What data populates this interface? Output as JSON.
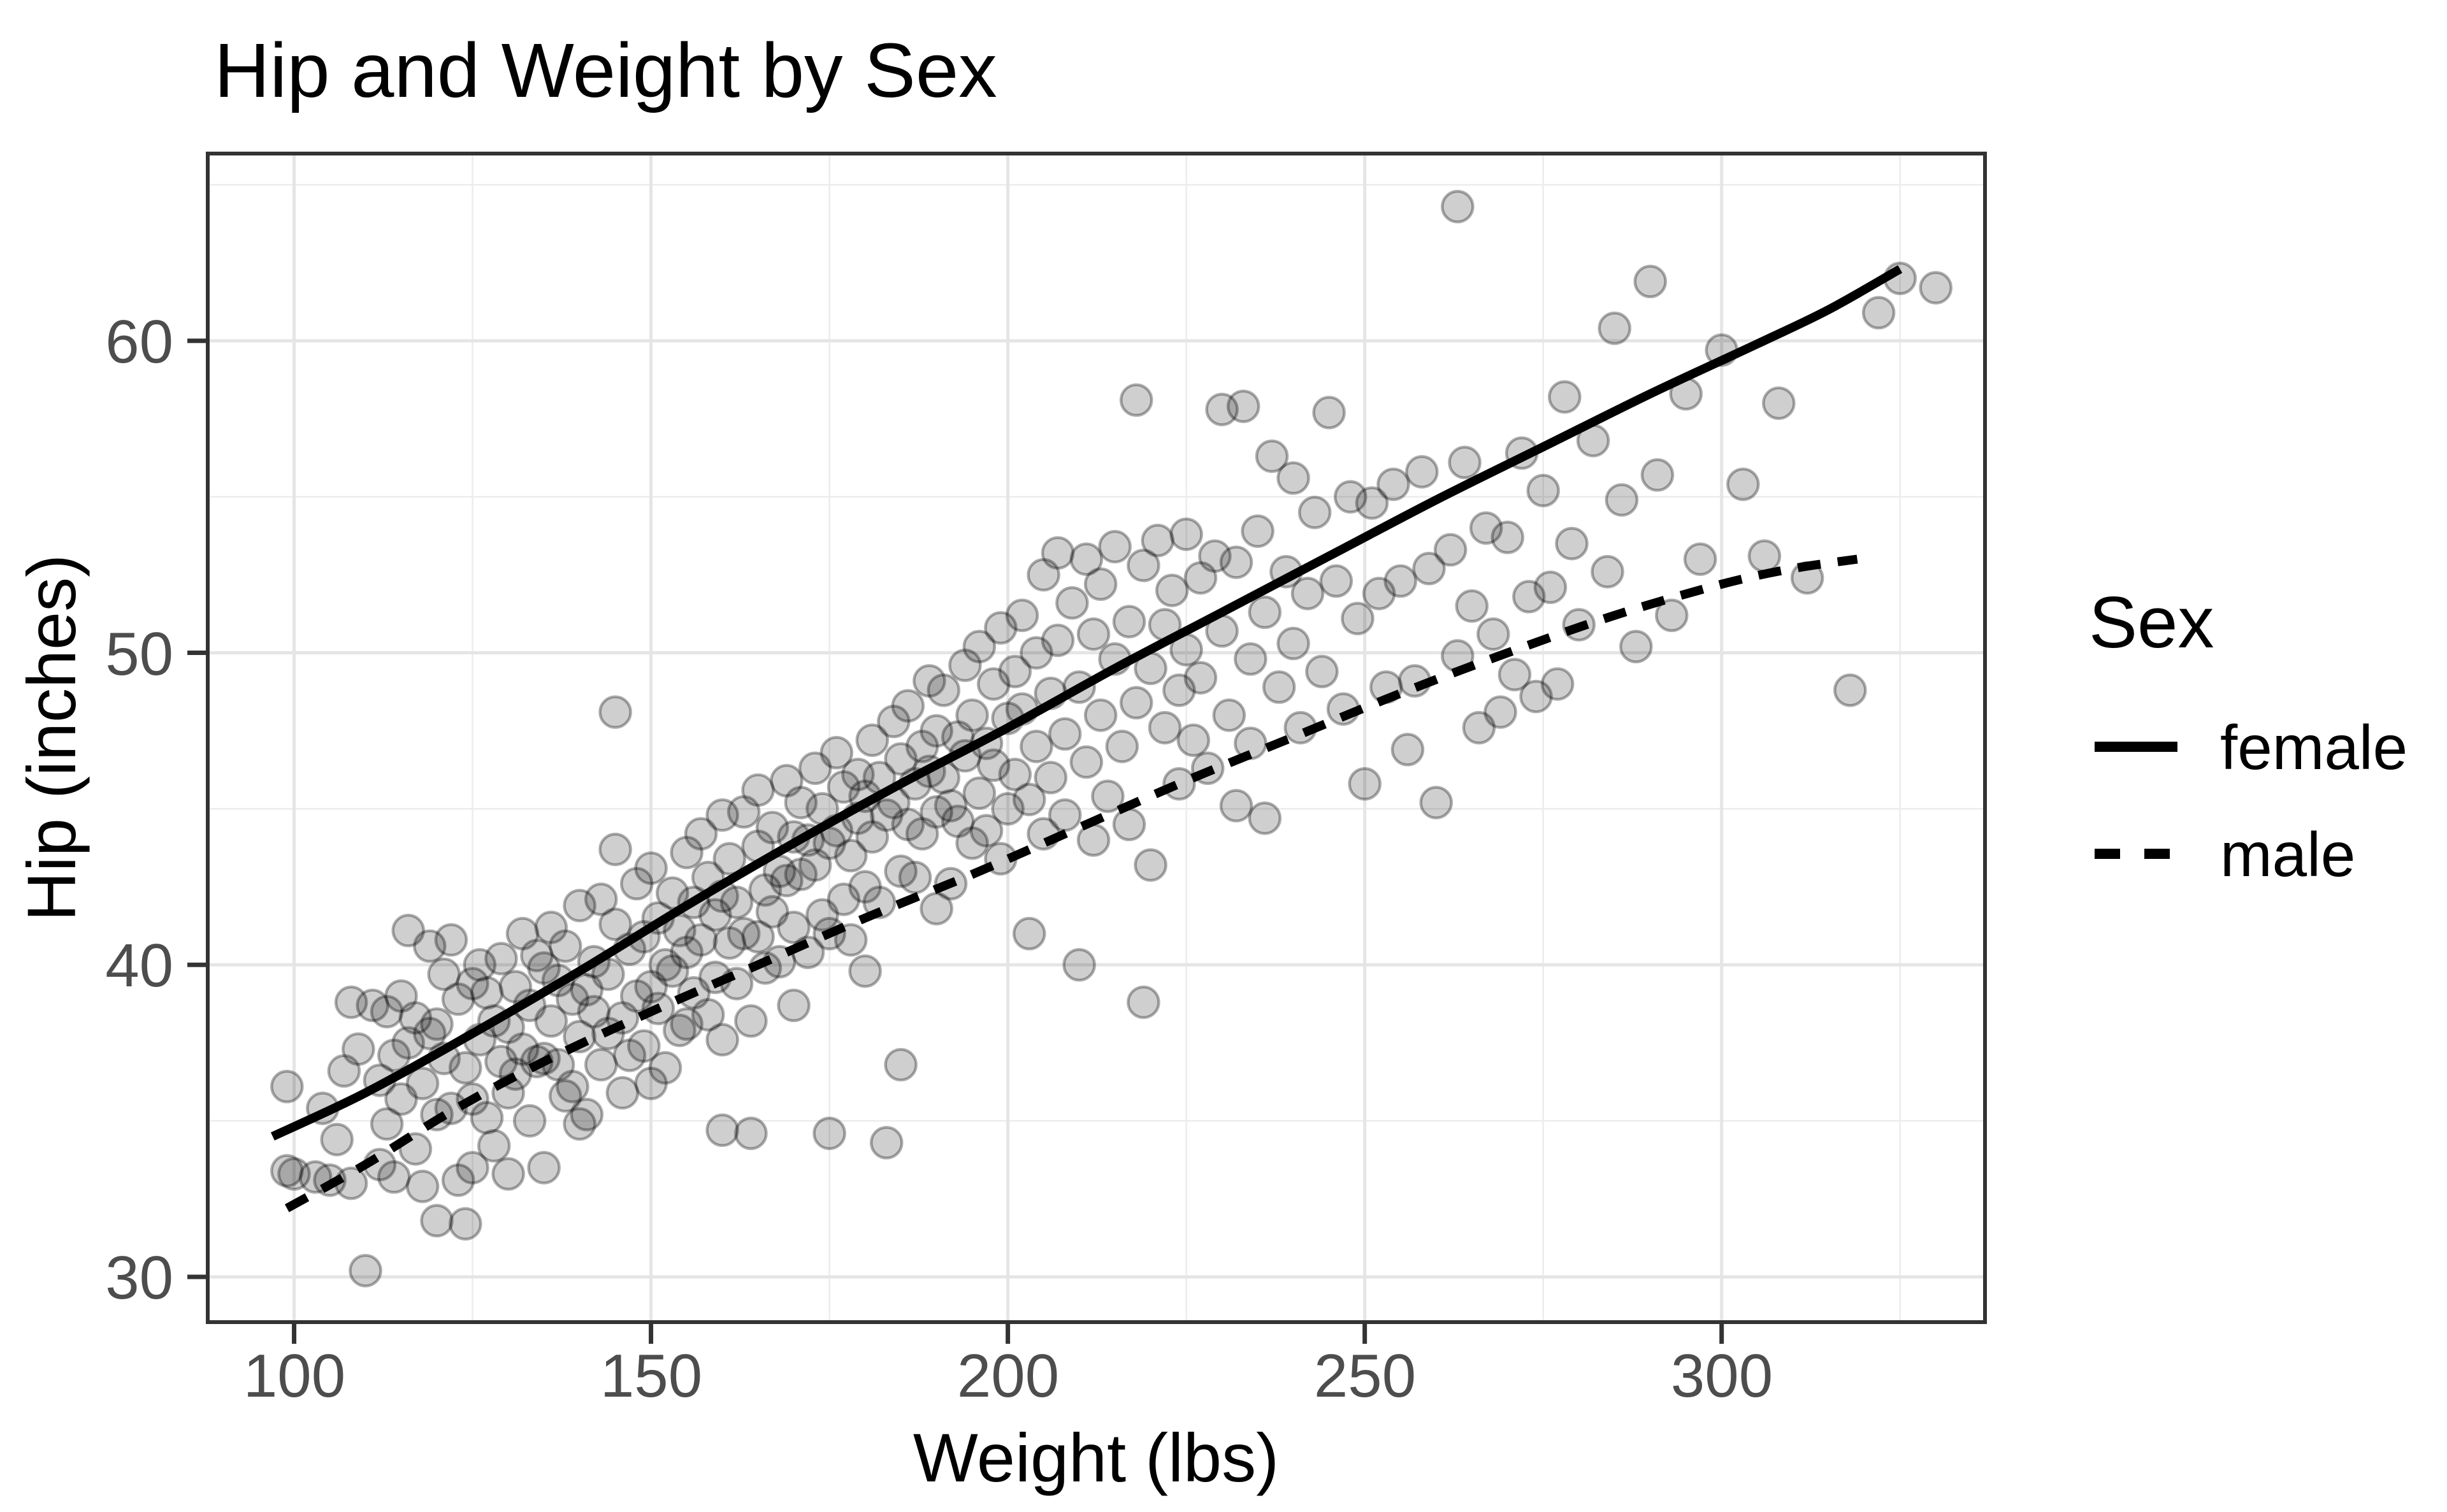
{
  "page": {
    "background": "#ffffff"
  },
  "chart_data": {
    "type": "scatter",
    "title": "Hip and Weight by Sex",
    "xlabel": "Weight (lbs)",
    "ylabel": "Hip (inches)",
    "xlim": [
      87.9,
      336.9
    ],
    "ylim": [
      28.55,
      66.0
    ],
    "x_ticks": [
      100,
      150,
      200,
      250,
      300
    ],
    "y_ticks": [
      30,
      40,
      50,
      60
    ],
    "x_minor_gridlines": [
      125,
      175,
      225,
      275,
      325
    ],
    "y_minor_gridlines": [
      35,
      45,
      55,
      65
    ],
    "grid": "on",
    "legend": {
      "title": "Sex",
      "position": "right",
      "entries": [
        {
          "label": "female",
          "linestyle": "solid"
        },
        {
          "label": "male",
          "linestyle": "dashed"
        }
      ]
    },
    "series": [
      {
        "name": "female",
        "linestyle": "solid",
        "values": [
          [
            97,
            34.5
          ],
          [
            110,
            35.9
          ],
          [
            125,
            37.8
          ],
          [
            140,
            39.8
          ],
          [
            155,
            41.9
          ],
          [
            170,
            43.9
          ],
          [
            185,
            45.8
          ],
          [
            200,
            47.6
          ],
          [
            215,
            49.5
          ],
          [
            230,
            51.3
          ],
          [
            245,
            53.1
          ],
          [
            260,
            54.9
          ],
          [
            275,
            56.6
          ],
          [
            290,
            58.3
          ],
          [
            305,
            59.9
          ],
          [
            315,
            61.0
          ],
          [
            325,
            62.3
          ]
        ]
      },
      {
        "name": "male",
        "linestyle": "dashed",
        "values": [
          [
            99,
            32.2
          ],
          [
            110,
            33.6
          ],
          [
            122,
            35.3
          ],
          [
            135,
            36.9
          ],
          [
            150,
            38.5
          ],
          [
            165,
            40.0
          ],
          [
            180,
            41.5
          ],
          [
            195,
            42.9
          ],
          [
            210,
            44.4
          ],
          [
            225,
            45.9
          ],
          [
            240,
            47.3
          ],
          [
            255,
            48.7
          ],
          [
            270,
            50.0
          ],
          [
            285,
            51.2
          ],
          [
            300,
            52.2
          ],
          [
            310,
            52.7
          ],
          [
            319,
            53.0
          ]
        ]
      }
    ],
    "points": [
      [
        99,
        36.1
      ],
      [
        99,
        33.4
      ],
      [
        100,
        33.3
      ],
      [
        103,
        33.2
      ],
      [
        104,
        35.4
      ],
      [
        105,
        33.1
      ],
      [
        106,
        34.4
      ],
      [
        107,
        36.6
      ],
      [
        108,
        33.0
      ],
      [
        108,
        38.8
      ],
      [
        109,
        37.3
      ],
      [
        110,
        30.2
      ],
      [
        111,
        38.7
      ],
      [
        112,
        36.3
      ],
      [
        112,
        33.6
      ],
      [
        113,
        38.5
      ],
      [
        113,
        34.9
      ],
      [
        114,
        37.1
      ],
      [
        114,
        33.2
      ],
      [
        115,
        39.0
      ],
      [
        115,
        35.7
      ],
      [
        116,
        41.1
      ],
      [
        116,
        37.5
      ],
      [
        117,
        38.3
      ],
      [
        117,
        34.1
      ],
      [
        118,
        36.2
      ],
      [
        118,
        32.9
      ],
      [
        119,
        40.6
      ],
      [
        119,
        37.8
      ],
      [
        120,
        38.1
      ],
      [
        120,
        35.2
      ],
      [
        120,
        31.8
      ],
      [
        121,
        37.0
      ],
      [
        121,
        39.7
      ],
      [
        122,
        40.8
      ],
      [
        122,
        35.4
      ],
      [
        123,
        38.9
      ],
      [
        123,
        33.1
      ],
      [
        124,
        36.7
      ],
      [
        124,
        31.7
      ],
      [
        125,
        39.4
      ],
      [
        125,
        35.7
      ],
      [
        125,
        33.5
      ],
      [
        126,
        37.6
      ],
      [
        126,
        40.0
      ],
      [
        127,
        39.1
      ],
      [
        127,
        35.1
      ],
      [
        128,
        38.2
      ],
      [
        128,
        34.2
      ],
      [
        129,
        40.2
      ],
      [
        129,
        36.9
      ],
      [
        130,
        38.0
      ],
      [
        130,
        35.9
      ],
      [
        130,
        33.3
      ],
      [
        131,
        39.3
      ],
      [
        131,
        36.5
      ],
      [
        132,
        41.0
      ],
      [
        132,
        37.3
      ],
      [
        133,
        35.0
      ],
      [
        133,
        38.7
      ],
      [
        134,
        40.3
      ],
      [
        134,
        36.9
      ],
      [
        135,
        39.9
      ],
      [
        135,
        37.0
      ],
      [
        135,
        33.5
      ],
      [
        136,
        38.2
      ],
      [
        136,
        41.2
      ],
      [
        137,
        36.8
      ],
      [
        137,
        39.5
      ],
      [
        138,
        35.8
      ],
      [
        138,
        40.6
      ],
      [
        139,
        38.9
      ],
      [
        139,
        36.1
      ],
      [
        140,
        41.9
      ],
      [
        140,
        37.7
      ],
      [
        140,
        34.9
      ],
      [
        141,
        39.2
      ],
      [
        141,
        35.2
      ],
      [
        142,
        40.1
      ],
      [
        142,
        38.5
      ],
      [
        143,
        42.1
      ],
      [
        143,
        36.8
      ],
      [
        144,
        39.7
      ],
      [
        144,
        37.8
      ],
      [
        145,
        48.1
      ],
      [
        145,
        43.7
      ],
      [
        145,
        41.3
      ],
      [
        146,
        38.3
      ],
      [
        146,
        35.9
      ],
      [
        147,
        40.5
      ],
      [
        147,
        37.1
      ],
      [
        148,
        42.6
      ],
      [
        148,
        39.0
      ],
      [
        149,
        40.9
      ],
      [
        149,
        37.4
      ],
      [
        150,
        43.1
      ],
      [
        150,
        39.3
      ],
      [
        150,
        36.2
      ],
      [
        151,
        41.5
      ],
      [
        151,
        38.6
      ],
      [
        152,
        40.0
      ],
      [
        152,
        36.7
      ],
      [
        153,
        42.3
      ],
      [
        153,
        39.8
      ],
      [
        154,
        41.1
      ],
      [
        154,
        37.9
      ],
      [
        155,
        43.6
      ],
      [
        155,
        40.4
      ],
      [
        155,
        38.1
      ],
      [
        156,
        42.0
      ],
      [
        156,
        39.1
      ],
      [
        157,
        44.2
      ],
      [
        157,
        40.8
      ],
      [
        158,
        38.4
      ],
      [
        158,
        42.8
      ],
      [
        159,
        41.6
      ],
      [
        159,
        39.6
      ],
      [
        160,
        44.8
      ],
      [
        160,
        42.2
      ],
      [
        160,
        37.6
      ],
      [
        160,
        34.7
      ],
      [
        161,
        40.7
      ],
      [
        161,
        43.4
      ],
      [
        162,
        39.4
      ],
      [
        162,
        42.0
      ],
      [
        163,
        44.9
      ],
      [
        163,
        41.0
      ],
      [
        164,
        38.2
      ],
      [
        164,
        34.6
      ],
      [
        165,
        43.8
      ],
      [
        165,
        40.9
      ],
      [
        165,
        45.6
      ],
      [
        166,
        42.4
      ],
      [
        166,
        39.9
      ],
      [
        167,
        44.4
      ],
      [
        167,
        41.7
      ],
      [
        168,
        43.0
      ],
      [
        168,
        40.1
      ],
      [
        169,
        45.9
      ],
      [
        169,
        42.7
      ],
      [
        170,
        44.1
      ],
      [
        170,
        41.2
      ],
      [
        170,
        38.7
      ],
      [
        171,
        45.2
      ],
      [
        171,
        42.9
      ],
      [
        172,
        40.4
      ],
      [
        172,
        44.0
      ],
      [
        173,
        46.3
      ],
      [
        173,
        43.2
      ],
      [
        174,
        41.6
      ],
      [
        174,
        45.0
      ],
      [
        175,
        43.9
      ],
      [
        175,
        41.0
      ],
      [
        175,
        34.6
      ],
      [
        176,
        46.8
      ],
      [
        176,
        44.3
      ],
      [
        177,
        42.1
      ],
      [
        177,
        45.7
      ],
      [
        178,
        43.5
      ],
      [
        178,
        40.8
      ],
      [
        179,
        46.1
      ],
      [
        179,
        44.7
      ],
      [
        180,
        42.5
      ],
      [
        180,
        45.4
      ],
      [
        180,
        39.8
      ],
      [
        181,
        47.2
      ],
      [
        181,
        44.1
      ],
      [
        182,
        42.0
      ],
      [
        182,
        46.0
      ],
      [
        183,
        44.8
      ],
      [
        183,
        34.3
      ],
      [
        184,
        47.8
      ],
      [
        184,
        45.2
      ],
      [
        185,
        43.0
      ],
      [
        185,
        46.6
      ],
      [
        185,
        36.8
      ],
      [
        186,
        44.5
      ],
      [
        186,
        48.3
      ],
      [
        187,
        45.8
      ],
      [
        187,
        42.8
      ],
      [
        188,
        47.0
      ],
      [
        188,
        44.2
      ],
      [
        189,
        49.1
      ],
      [
        189,
        46.2
      ],
      [
        190,
        44.9
      ],
      [
        190,
        47.5
      ],
      [
        190,
        41.8
      ],
      [
        191,
        46.0
      ],
      [
        191,
        48.8
      ],
      [
        192,
        45.1
      ],
      [
        192,
        42.6
      ],
      [
        193,
        47.3
      ],
      [
        193,
        44.6
      ],
      [
        194,
        49.6
      ],
      [
        194,
        46.7
      ],
      [
        195,
        43.9
      ],
      [
        195,
        48.0
      ],
      [
        196,
        45.5
      ],
      [
        196,
        50.2
      ],
      [
        197,
        47.1
      ],
      [
        197,
        44.3
      ],
      [
        198,
        49.0
      ],
      [
        198,
        46.4
      ],
      [
        199,
        43.4
      ],
      [
        199,
        50.8
      ],
      [
        200,
        47.9
      ],
      [
        200,
        45.0
      ],
      [
        201,
        49.4
      ],
      [
        201,
        46.1
      ],
      [
        202,
        51.2
      ],
      [
        202,
        48.2
      ],
      [
        203,
        45.3
      ],
      [
        203,
        41.0
      ],
      [
        204,
        50.0
      ],
      [
        204,
        47.0
      ],
      [
        205,
        52.5
      ],
      [
        205,
        44.2
      ],
      [
        206,
        48.7
      ],
      [
        206,
        46.0
      ],
      [
        207,
        53.2
      ],
      [
        207,
        50.4
      ],
      [
        208,
        47.4
      ],
      [
        208,
        44.8
      ],
      [
        209,
        51.6
      ],
      [
        210,
        48.9
      ],
      [
        210,
        40.0
      ],
      [
        211,
        53.0
      ],
      [
        211,
        46.5
      ],
      [
        212,
        50.6
      ],
      [
        212,
        44.0
      ],
      [
        213,
        52.2
      ],
      [
        213,
        48.0
      ],
      [
        214,
        45.4
      ],
      [
        215,
        53.4
      ],
      [
        215,
        49.8
      ],
      [
        216,
        47.0
      ],
      [
        217,
        51.0
      ],
      [
        217,
        44.5
      ],
      [
        218,
        58.1
      ],
      [
        218,
        48.4
      ],
      [
        219,
        52.8
      ],
      [
        219,
        38.8
      ],
      [
        220,
        49.5
      ],
      [
        220,
        43.2
      ],
      [
        221,
        53.6
      ],
      [
        222,
        50.9
      ],
      [
        222,
        47.6
      ],
      [
        223,
        52.0
      ],
      [
        224,
        48.8
      ],
      [
        224,
        45.8
      ],
      [
        225,
        53.8
      ],
      [
        225,
        50.1
      ],
      [
        226,
        47.2
      ],
      [
        227,
        52.4
      ],
      [
        227,
        49.2
      ],
      [
        228,
        46.3
      ],
      [
        229,
        53.1
      ],
      [
        230,
        57.8
      ],
      [
        230,
        50.7
      ],
      [
        231,
        48.0
      ],
      [
        232,
        52.9
      ],
      [
        232,
        45.1
      ],
      [
        233,
        57.9
      ],
      [
        234,
        49.8
      ],
      [
        234,
        47.1
      ],
      [
        235,
        53.9
      ],
      [
        236,
        51.3
      ],
      [
        236,
        44.7
      ],
      [
        237,
        56.3
      ],
      [
        238,
        48.9
      ],
      [
        239,
        52.6
      ],
      [
        240,
        55.6
      ],
      [
        240,
        50.3
      ],
      [
        241,
        47.6
      ],
      [
        242,
        51.9
      ],
      [
        243,
        54.5
      ],
      [
        244,
        49.4
      ],
      [
        245,
        57.7
      ],
      [
        246,
        52.3
      ],
      [
        247,
        48.2
      ],
      [
        248,
        55.0
      ],
      [
        249,
        51.1
      ],
      [
        250,
        45.8
      ],
      [
        251,
        54.8
      ],
      [
        252,
        51.9
      ],
      [
        253,
        48.9
      ],
      [
        254,
        55.4
      ],
      [
        255,
        52.3
      ],
      [
        256,
        46.9
      ],
      [
        257,
        49.1
      ],
      [
        258,
        55.8
      ],
      [
        259,
        52.7
      ],
      [
        260,
        45.2
      ],
      [
        262,
        53.3
      ],
      [
        263,
        64.3
      ],
      [
        263,
        49.9
      ],
      [
        264,
        56.1
      ],
      [
        265,
        51.5
      ],
      [
        266,
        47.6
      ],
      [
        267,
        54.0
      ],
      [
        268,
        50.6
      ],
      [
        269,
        48.1
      ],
      [
        270,
        53.7
      ],
      [
        271,
        49.3
      ],
      [
        272,
        56.4
      ],
      [
        273,
        51.8
      ],
      [
        274,
        48.6
      ],
      [
        275,
        55.2
      ],
      [
        276,
        52.1
      ],
      [
        277,
        49.0
      ],
      [
        278,
        58.2
      ],
      [
        279,
        53.5
      ],
      [
        280,
        50.9
      ],
      [
        282,
        56.8
      ],
      [
        284,
        52.6
      ],
      [
        285,
        60.4
      ],
      [
        286,
        54.9
      ],
      [
        288,
        50.2
      ],
      [
        290,
        61.9
      ],
      [
        291,
        55.7
      ],
      [
        293,
        51.2
      ],
      [
        295,
        58.3
      ],
      [
        297,
        53.0
      ],
      [
        300,
        59.7
      ],
      [
        303,
        55.4
      ],
      [
        306,
        53.1
      ],
      [
        308,
        58.0
      ],
      [
        312,
        52.4
      ],
      [
        318,
        48.8
      ],
      [
        322,
        60.9
      ],
      [
        325,
        62.0
      ],
      [
        330,
        61.7
      ]
    ],
    "style": {
      "point_fill": "rgba(0,0,0,0.19)",
      "point_stroke": "rgba(0,0,0,0.32)",
      "point_radius": 24,
      "point_stroke_width": 4.5,
      "line_color": "#000000",
      "line_width": 14,
      "dash_pattern": "36 27",
      "legend_dash_pattern": "40 38",
      "grid_major_color": "#e5e5e5",
      "grid_minor_color": "#ececec",
      "grid_major_width": 5,
      "grid_minor_width": 2.5,
      "panel_border_color": "#333333",
      "tick_color": "#333333",
      "tick_label_color": "#4d4d4d",
      "text_color": "#000000",
      "background": "#ffffff"
    }
  }
}
